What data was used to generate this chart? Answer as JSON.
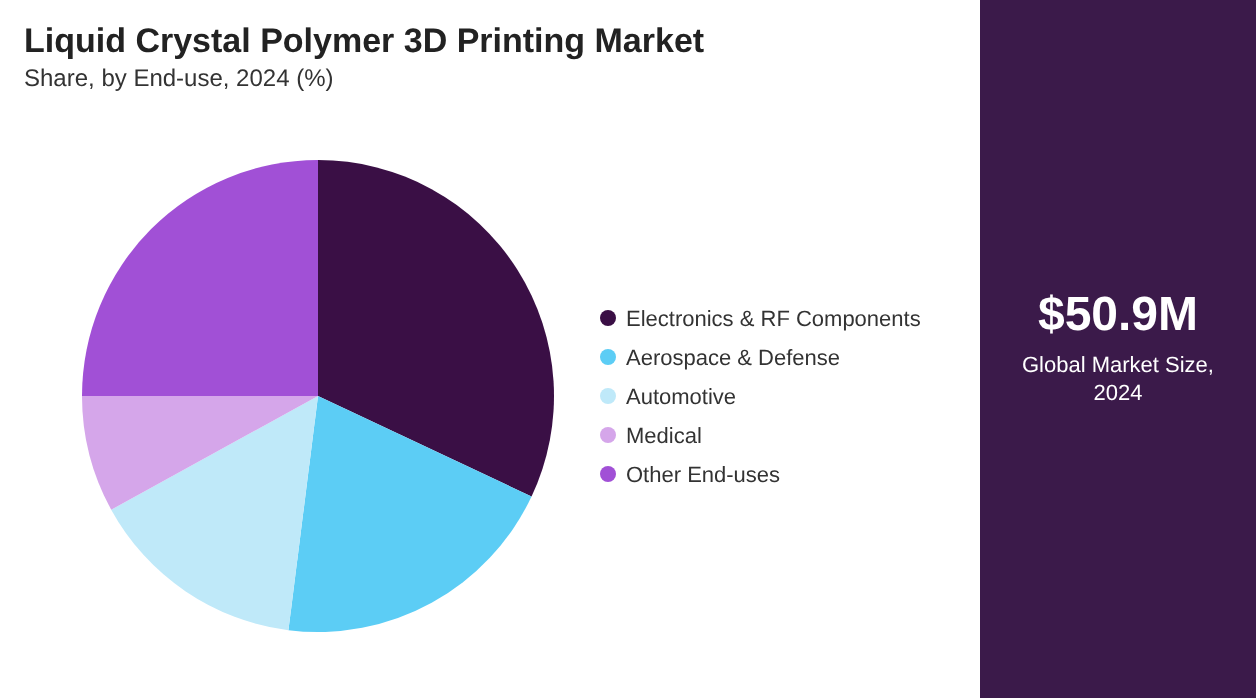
{
  "chart_data": {
    "type": "pie",
    "title": "Liquid Crystal Polymer 3D Printing Market",
    "subtitle": "Share, by End-use, 2024 (%)",
    "categories": [
      "Electronics & RF Components",
      "Aerospace & Defense",
      "Automotive",
      "Medical",
      "Other End-uses"
    ],
    "values": [
      32,
      20,
      15,
      8,
      25
    ],
    "colors": [
      "#3a0f45",
      "#5ccdf5",
      "#bfe9f9",
      "#d5a6ea",
      "#a150d6"
    ],
    "legend": "right",
    "annotations": [
      "$50.9M",
      "Global Market Size, 2024"
    ]
  }
}
